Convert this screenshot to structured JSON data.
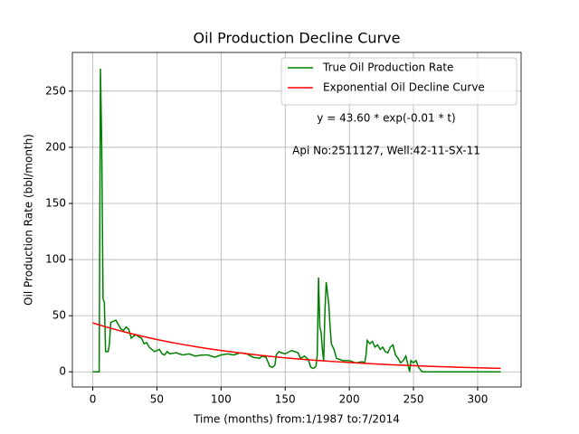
{
  "chart_data": {
    "type": "line",
    "title": "Oil Production Decline Curve",
    "x_label": "Time (months) from:1/1987 to:7/2014",
    "y_label": "Oil Production Rate (bbl/month)",
    "annotations": [
      "y = 43.60 * exp(-0.01 * t)",
      "Api No:2511127, Well:42-11-SX-11"
    ],
    "xlim": [
      -15.9,
      333.9
    ],
    "ylim": [
      -13.5,
      284.5
    ],
    "xticks": [
      0,
      50,
      100,
      150,
      200,
      250,
      300
    ],
    "yticks": [
      0,
      50,
      100,
      150,
      200,
      250
    ],
    "grid": true,
    "legend": "upper right",
    "series": [
      {
        "name": "True Oil Production Rate",
        "color": "#008000",
        "x": [
          0,
          4,
          5,
          6,
          7,
          8,
          9,
          10,
          12,
          13,
          14,
          16,
          18,
          20,
          22,
          24,
          26,
          28,
          30,
          32,
          34,
          36,
          38,
          40,
          42,
          44,
          46,
          48,
          50,
          52,
          54,
          56,
          58,
          60,
          65,
          70,
          75,
          80,
          85,
          90,
          95,
          100,
          105,
          110,
          115,
          120,
          125,
          130,
          132,
          135,
          138,
          140,
          142,
          143,
          145,
          147,
          150,
          155,
          160,
          162,
          165,
          168,
          170,
          172,
          174,
          175,
          176,
          177,
          178,
          179,
          180,
          181,
          182,
          183,
          184,
          185,
          186,
          188,
          190,
          195,
          200,
          205,
          210,
          212,
          213,
          214,
          216,
          218,
          220,
          222,
          224,
          226,
          228,
          230,
          232,
          234,
          236,
          238,
          240,
          242,
          244,
          246,
          247,
          248,
          250,
          252,
          254,
          256,
          257,
          318
        ],
        "values": [
          0,
          0,
          0,
          270,
          200,
          65,
          62,
          18,
          18,
          25,
          44,
          45,
          46,
          42,
          38,
          37,
          40,
          38,
          30,
          32,
          33,
          31,
          30,
          25,
          26,
          22,
          20,
          18,
          19,
          20,
          16,
          15,
          18,
          16,
          17,
          15,
          16,
          14,
          15,
          15,
          13,
          15,
          16,
          15,
          17,
          16,
          13,
          12,
          14,
          13,
          5,
          4,
          6,
          15,
          18,
          17,
          16,
          19,
          17,
          12,
          14,
          11,
          4,
          3,
          5,
          15,
          84,
          40,
          35,
          20,
          10,
          55,
          80,
          70,
          60,
          40,
          25,
          20,
          12,
          10,
          10,
          8,
          9,
          8,
          15,
          28,
          25,
          27,
          22,
          24,
          20,
          22,
          18,
          17,
          22,
          24,
          15,
          12,
          8,
          10,
          14,
          5,
          0,
          10,
          8,
          10,
          4,
          1,
          0,
          0
        ]
      },
      {
        "name": "Exponential Oil Decline Curve",
        "color": "#ff0000",
        "x": [
          0,
          10,
          20,
          30,
          40,
          50,
          60,
          70,
          80,
          90,
          100,
          110,
          120,
          130,
          140,
          150,
          160,
          170,
          180,
          190,
          200,
          210,
          220,
          230,
          240,
          250,
          260,
          270,
          280,
          290,
          300,
          310,
          318
        ],
        "values": [
          43.6,
          40.1,
          36.9,
          34.0,
          31.3,
          28.8,
          26.5,
          24.4,
          22.4,
          20.6,
          19.0,
          17.5,
          16.1,
          14.8,
          13.6,
          12.5,
          11.5,
          10.6,
          9.8,
          9.0,
          8.3,
          7.6,
          7.0,
          6.4,
          5.9,
          5.5,
          5.0,
          4.6,
          4.3,
          3.9,
          3.6,
          3.3,
          3.1
        ]
      }
    ]
  }
}
